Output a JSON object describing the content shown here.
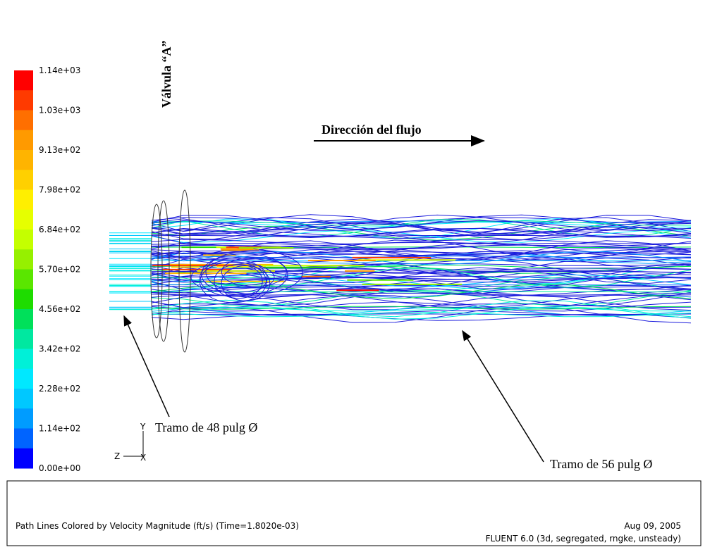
{
  "colorbar": {
    "labels": [
      "1.14e+03",
      "1.03e+03",
      "9.13e+02",
      "7.98e+02",
      "6.84e+02",
      "5.70e+02",
      "4.56e+02",
      "3.42e+02",
      "2.28e+02",
      "1.14e+02",
      "0.00e+00"
    ],
    "colors": [
      "#ff0000",
      "#ff3a00",
      "#ff6f00",
      "#ff9a00",
      "#ffb400",
      "#ffd000",
      "#ffef00",
      "#e6ff00",
      "#c4ff00",
      "#96f000",
      "#5ae600",
      "#1edc00",
      "#00e05a",
      "#00e8a0",
      "#00f0d8",
      "#00e8ff",
      "#00c8ff",
      "#009cff",
      "#0064ff",
      "#0000ff"
    ]
  },
  "annotations": {
    "valve": "Válvula “A”",
    "flow_direction": "Dirección del flujo",
    "section_48": "Tramo de 48 pulg  Ø",
    "section_56": "Tramo de 56 pulg  Ø"
  },
  "axes_triad": {
    "y": "Y",
    "z": "Z",
    "x": "X"
  },
  "footer": {
    "description": "Path Lines Colored by Velocity Magnitude (ft/s)  (Time=1.8020e-03)",
    "date": "Aug 09, 2005",
    "software": "FLUENT 6.0 (3d, segregated, rngke, unsteady)"
  }
}
